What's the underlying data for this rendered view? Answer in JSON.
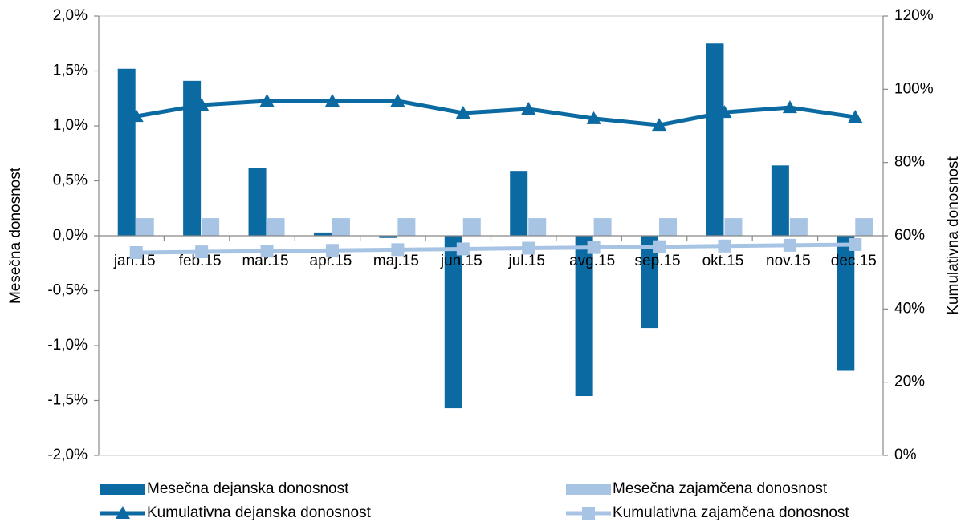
{
  "chart_data": {
    "type": "bar_line",
    "y_label": "Mesečna donosnost",
    "y2_label": "Kumulativna donosnost",
    "categories": [
      "jan.15",
      "feb.15",
      "mar.15",
      "apr.15",
      "maj.15",
      "jun.15",
      "jul.15",
      "avg.15",
      "sep.15",
      "okt.15",
      "nov.15",
      "dec.15"
    ],
    "series": [
      {
        "name": "Mesečna dejanska donosnost",
        "type": "bar",
        "color": "#0b6aa2",
        "values": [
          1.52,
          1.41,
          0.62,
          0.03,
          -0.02,
          -1.57,
          0.59,
          -1.46,
          -0.84,
          1.75,
          0.64,
          -1.23
        ]
      },
      {
        "name": "Mesečna zajamčena donosnost",
        "type": "bar",
        "color": "#a7c4e5",
        "values": [
          0.16,
          0.16,
          0.16,
          0.16,
          0.16,
          0.16,
          0.16,
          0.16,
          0.16,
          0.16,
          0.16,
          0.16
        ]
      },
      {
        "name": "Kumulativna dejanska donosnost",
        "type": "line",
        "marker": "triangle",
        "axis": "y2",
        "color": "#0b6aa2",
        "values": [
          92.6,
          95.7,
          96.8,
          96.8,
          96.8,
          93.5,
          94.6,
          92.0,
          90.2,
          93.7,
          95.0,
          92.4
        ]
      },
      {
        "name": "Kumulativna zajamčena donosnost",
        "type": "line",
        "marker": "square",
        "axis": "y2",
        "color": "#a7c4e5",
        "values": [
          55.4,
          55.6,
          55.8,
          56.0,
          56.2,
          56.4,
          56.6,
          56.8,
          57.0,
          57.2,
          57.4,
          57.6
        ]
      }
    ],
    "ylim": [
      -2,
      2
    ],
    "yticks": [
      {
        "value": -2,
        "label": "-2,0%"
      },
      {
        "value": -1.5,
        "label": "-1,5%"
      },
      {
        "value": -1,
        "label": "-1,0%"
      },
      {
        "value": -0.5,
        "label": "-0,5%"
      },
      {
        "value": 0,
        "label": "0,0%"
      },
      {
        "value": 0.5,
        "label": "0,5%"
      },
      {
        "value": 1,
        "label": "1,0%"
      },
      {
        "value": 1.5,
        "label": "1,5%"
      },
      {
        "value": 2,
        "label": "2,0%"
      }
    ],
    "y2lim": [
      0,
      120
    ],
    "y2ticks": [
      {
        "value": 0,
        "label": "0%"
      },
      {
        "value": 20,
        "label": "20%"
      },
      {
        "value": 40,
        "label": "40%"
      },
      {
        "value": 60,
        "label": "60%"
      },
      {
        "value": 80,
        "label": "80%"
      },
      {
        "value": 100,
        "label": "100%"
      },
      {
        "value": 120,
        "label": "120%"
      }
    ]
  }
}
